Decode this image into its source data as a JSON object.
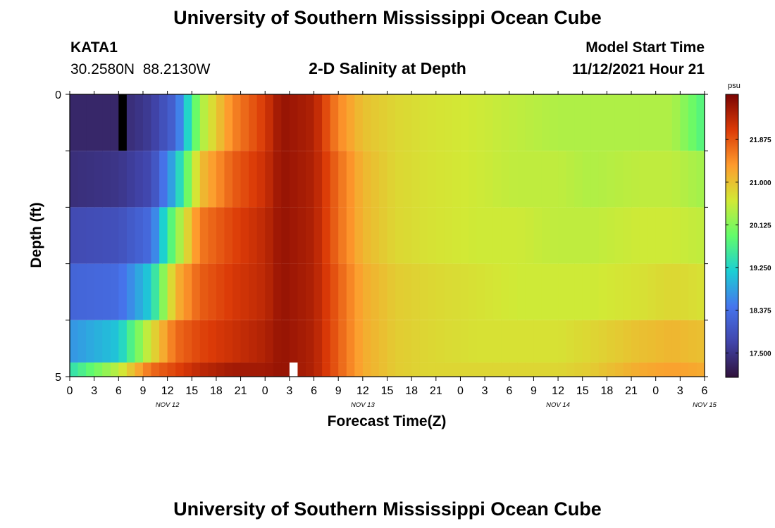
{
  "header": {
    "title": "University of Southern Mississippi Ocean Cube",
    "station_name": "KATA1",
    "station_coords": "30.2580N  88.2130W",
    "subtitle": "2-D Salinity at Depth",
    "model_start_label": "Model Start Time",
    "model_start_value": "11/12/2021 Hour 21"
  },
  "footer": {
    "title": "University of Southern Mississippi Ocean Cube"
  },
  "colors": {
    "colormap": [
      "#30123b",
      "#4145ab",
      "#4675ed",
      "#1bcfd4",
      "#62fc6b",
      "#d2e935",
      "#fe9b2d",
      "#db3a07",
      "#7a0403"
    ],
    "missing_low": "#000000",
    "missing_high": "#ffffff"
  },
  "chart_data": {
    "type": "heatmap",
    "xlabel": "Forecast Time(Z)",
    "ylabel": "Depth (ft)",
    "colorbar_label": "psu",
    "x_tick_labels": [
      "0",
      "3",
      "6",
      "9",
      "12",
      "15",
      "18",
      "21",
      "0",
      "3",
      "6",
      "9",
      "12",
      "15",
      "18",
      "21",
      "0",
      "3",
      "6",
      "9",
      "12",
      "15",
      "18",
      "21",
      "0",
      "3",
      "6"
    ],
    "date_labels": [
      {
        "label": "NOV 12",
        "hour": 12
      },
      {
        "label": "NOV 13",
        "hour": 36
      },
      {
        "label": "NOV 14",
        "hour": 60
      },
      {
        "label": "NOV 15",
        "hour": 78
      }
    ],
    "y_tick_labels": [
      "0",
      "5"
    ],
    "ylim": [
      0,
      5
    ],
    "xlim": [
      0,
      78
    ],
    "colorbar_ticks": [
      "17.500",
      "18.375",
      "19.250",
      "20.125",
      "21.000",
      "21.875"
    ],
    "colorbar_range": [
      17.0,
      22.8
    ],
    "depth_layers": [
      0,
      1,
      2,
      3,
      4,
      4.75
    ],
    "time_keys": [
      0,
      6,
      10,
      13,
      16,
      20,
      24,
      26,
      30,
      33,
      36,
      40,
      44,
      50,
      55,
      60,
      64,
      70,
      74,
      78
    ],
    "layer_profiles": [
      [
        17.3,
        17.3,
        17.6,
        18.2,
        20.3,
        21.5,
        22.1,
        22.6,
        22.4,
        21.5,
        21.0,
        20.8,
        20.7,
        20.6,
        20.5,
        20.4,
        20.4,
        20.4,
        20.4,
        19.7
      ],
      [
        17.4,
        17.5,
        17.8,
        19.0,
        21.0,
        21.8,
        22.2,
        22.6,
        22.4,
        21.7,
        21.1,
        20.8,
        20.7,
        20.6,
        20.5,
        20.5,
        20.4,
        20.5,
        20.5,
        20.3
      ],
      [
        17.8,
        17.9,
        18.3,
        20.1,
        21.6,
        22.0,
        22.3,
        22.6,
        22.4,
        21.7,
        21.1,
        20.8,
        20.7,
        20.6,
        20.6,
        20.5,
        20.5,
        20.6,
        20.6,
        20.5
      ],
      [
        18.2,
        18.3,
        19.2,
        21.1,
        21.8,
        22.1,
        22.3,
        22.6,
        22.4,
        21.8,
        21.2,
        20.9,
        20.8,
        20.7,
        20.6,
        20.6,
        20.6,
        20.7,
        20.8,
        20.7
      ],
      [
        18.7,
        19.1,
        20.7,
        21.7,
        22.0,
        22.2,
        22.4,
        22.6,
        22.4,
        21.8,
        21.2,
        20.9,
        20.8,
        20.7,
        20.7,
        20.7,
        20.8,
        21.0,
        21.1,
        21.0
      ],
      [
        19.4,
        20.5,
        21.7,
        22.0,
        22.3,
        22.5,
        22.5,
        22.6,
        22.4,
        21.8,
        21.2,
        20.9,
        20.8,
        20.8,
        20.8,
        20.8,
        20.9,
        21.2,
        21.3,
        21.2
      ]
    ],
    "missing_cells": [
      {
        "hour": 6,
        "layer": 0,
        "kind": "low"
      },
      {
        "hour": 27,
        "layer": 5,
        "kind": "high"
      }
    ]
  }
}
